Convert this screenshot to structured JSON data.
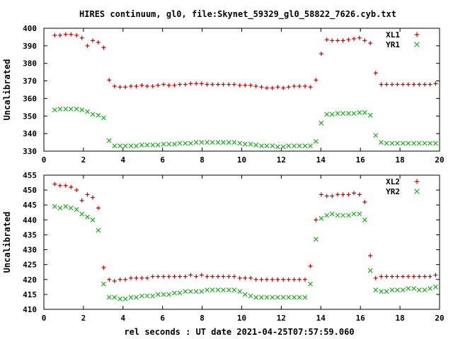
{
  "figure": {
    "title": "HIRES continuum, gl0, file:Skynet_59329_gl0_58822_7626.cyb.txt",
    "xlabel": "rel seconds : UT date 2021-04-25T07:57:59.060"
  },
  "colors": {
    "red": "#cc0000",
    "green": "#22aa22",
    "axis": "#000000",
    "grid": "#c8c8c8"
  },
  "chart_data": [
    {
      "type": "scatter",
      "ylabel": "Uncalibrated",
      "xlim": [
        0,
        20
      ],
      "ylim": [
        330,
        400
      ],
      "xticks": [
        0,
        2,
        4,
        6,
        8,
        10,
        12,
        14,
        16,
        18,
        20
      ],
      "yticks": [
        330,
        340,
        350,
        360,
        370,
        380,
        390,
        400
      ],
      "grid": false,
      "legend_position": "top-right",
      "x": [
        0.55,
        0.82,
        1.1,
        1.37,
        1.65,
        1.92,
        2.2,
        2.47,
        2.75,
        3.02,
        3.3,
        3.57,
        3.85,
        4.12,
        4.4,
        4.67,
        4.95,
        5.22,
        5.5,
        5.77,
        6.05,
        6.32,
        6.6,
        6.87,
        7.15,
        7.42,
        7.7,
        7.97,
        8.25,
        8.52,
        8.8,
        9.07,
        9.35,
        9.62,
        9.9,
        10.17,
        10.45,
        10.72,
        11.0,
        11.27,
        11.55,
        11.82,
        12.1,
        12.37,
        12.65,
        12.92,
        13.2,
        13.47,
        13.75,
        14.02,
        14.3,
        14.57,
        14.85,
        15.12,
        15.4,
        15.67,
        15.95,
        16.22,
        16.5,
        16.77,
        17.05,
        17.32,
        17.6,
        17.87,
        18.15,
        18.42,
        18.7,
        18.97,
        19.25,
        19.52,
        19.8
      ],
      "series": [
        {
          "name": "XL1",
          "marker": "plus",
          "color": "#cc0000",
          "values": [
            396,
            396,
            396.5,
            396.5,
            396,
            394.5,
            390,
            393,
            392,
            389,
            370.5,
            367,
            366.5,
            366.5,
            367,
            367,
            367.5,
            367,
            367,
            367.5,
            368,
            367.5,
            367.5,
            368,
            368,
            368.5,
            368.5,
            368.5,
            368,
            368,
            368,
            368,
            368,
            368,
            367.5,
            367.5,
            367.5,
            367,
            366.5,
            366,
            366,
            366.5,
            366,
            366.5,
            367,
            367,
            367,
            366.5,
            370.5,
            385.5,
            393.5,
            393,
            393,
            393,
            393.5,
            394,
            394.5,
            393,
            391.5,
            374.5,
            368,
            368,
            368,
            368,
            368,
            368,
            368,
            368,
            368,
            368,
            368.5
          ]
        },
        {
          "name": "YR1",
          "marker": "cross",
          "color": "#22aa22",
          "values": [
            353.5,
            354,
            354,
            354,
            354,
            353.5,
            352.5,
            351,
            350.5,
            349,
            336,
            333,
            333,
            333,
            333,
            333,
            333.5,
            333.5,
            333.5,
            333.5,
            334,
            334,
            334,
            334.5,
            334.5,
            334.5,
            335,
            335,
            335,
            335,
            335,
            335,
            335,
            335,
            334.5,
            334,
            334,
            333.5,
            333,
            333,
            333,
            332.5,
            332.5,
            333,
            333,
            333,
            333,
            333,
            335.5,
            346,
            351,
            351,
            351.5,
            351.5,
            351.5,
            351.5,
            352,
            352,
            350.5,
            339,
            335,
            334.5,
            334.5,
            334.5,
            334.5,
            334.5,
            334.5,
            334.5,
            334.5,
            334.5,
            334.5
          ]
        }
      ]
    },
    {
      "type": "scatter",
      "ylabel": "Uncalibrated",
      "xlim": [
        0,
        20
      ],
      "ylim": [
        410,
        455
      ],
      "xticks": [
        0,
        2,
        4,
        6,
        8,
        10,
        12,
        14,
        16,
        18,
        20
      ],
      "yticks": [
        410,
        415,
        420,
        425,
        430,
        435,
        440,
        445,
        450,
        455
      ],
      "grid": false,
      "legend_position": "top-right",
      "x": [
        0.55,
        0.82,
        1.1,
        1.37,
        1.65,
        1.92,
        2.2,
        2.47,
        2.75,
        3.02,
        3.3,
        3.57,
        3.85,
        4.12,
        4.4,
        4.67,
        4.95,
        5.22,
        5.5,
        5.77,
        6.05,
        6.32,
        6.6,
        6.87,
        7.15,
        7.42,
        7.7,
        7.97,
        8.25,
        8.52,
        8.8,
        9.07,
        9.35,
        9.62,
        9.9,
        10.17,
        10.45,
        10.72,
        11.0,
        11.27,
        11.55,
        11.82,
        12.1,
        12.37,
        12.65,
        12.92,
        13.2,
        13.47,
        13.75,
        14.02,
        14.3,
        14.57,
        14.85,
        15.12,
        15.4,
        15.67,
        15.95,
        16.22,
        16.5,
        16.77,
        17.05,
        17.32,
        17.6,
        17.87,
        18.15,
        18.42,
        18.7,
        18.97,
        19.25,
        19.52,
        19.8
      ],
      "series": [
        {
          "name": "XL2",
          "marker": "plus",
          "color": "#cc0000",
          "values": [
            452,
            451.5,
            451.5,
            451,
            450,
            446.5,
            448.5,
            447.5,
            444,
            424,
            420,
            419.5,
            420,
            420,
            420.5,
            420.5,
            420.5,
            420.5,
            421,
            421,
            421,
            421,
            421,
            421,
            421,
            421.5,
            421,
            421.5,
            421,
            421,
            421,
            421,
            421,
            421,
            420.5,
            420.5,
            420.5,
            420,
            420,
            420,
            420,
            420,
            420,
            420,
            420,
            420,
            420,
            424.5,
            440,
            448.5,
            448,
            448,
            448.5,
            448.5,
            448.5,
            449,
            448.5,
            446,
            428,
            420.5,
            421,
            421,
            421,
            421,
            421,
            421,
            421,
            421,
            421,
            421,
            421.5
          ]
        },
        {
          "name": "YR2",
          "marker": "cross",
          "color": "#22aa22",
          "values": [
            444.5,
            444,
            444.5,
            444,
            443.5,
            442,
            441,
            440,
            436.5,
            418.5,
            414,
            414,
            413.5,
            413.5,
            414,
            414,
            414.5,
            414.5,
            414.5,
            415,
            415,
            415,
            415.5,
            415.5,
            416,
            416,
            416,
            416,
            416.5,
            416.5,
            416.5,
            416.5,
            416.5,
            416.5,
            416,
            415,
            414.5,
            414,
            414,
            414,
            414,
            414,
            414,
            414,
            414,
            414,
            414,
            418.5,
            433.5,
            440.5,
            441.5,
            442,
            441.5,
            441.5,
            441.5,
            442,
            442,
            440,
            423,
            416.5,
            416,
            416,
            416.5,
            416.5,
            416.5,
            417,
            417,
            416.5,
            416.5,
            417,
            417.5
          ]
        }
      ]
    }
  ]
}
